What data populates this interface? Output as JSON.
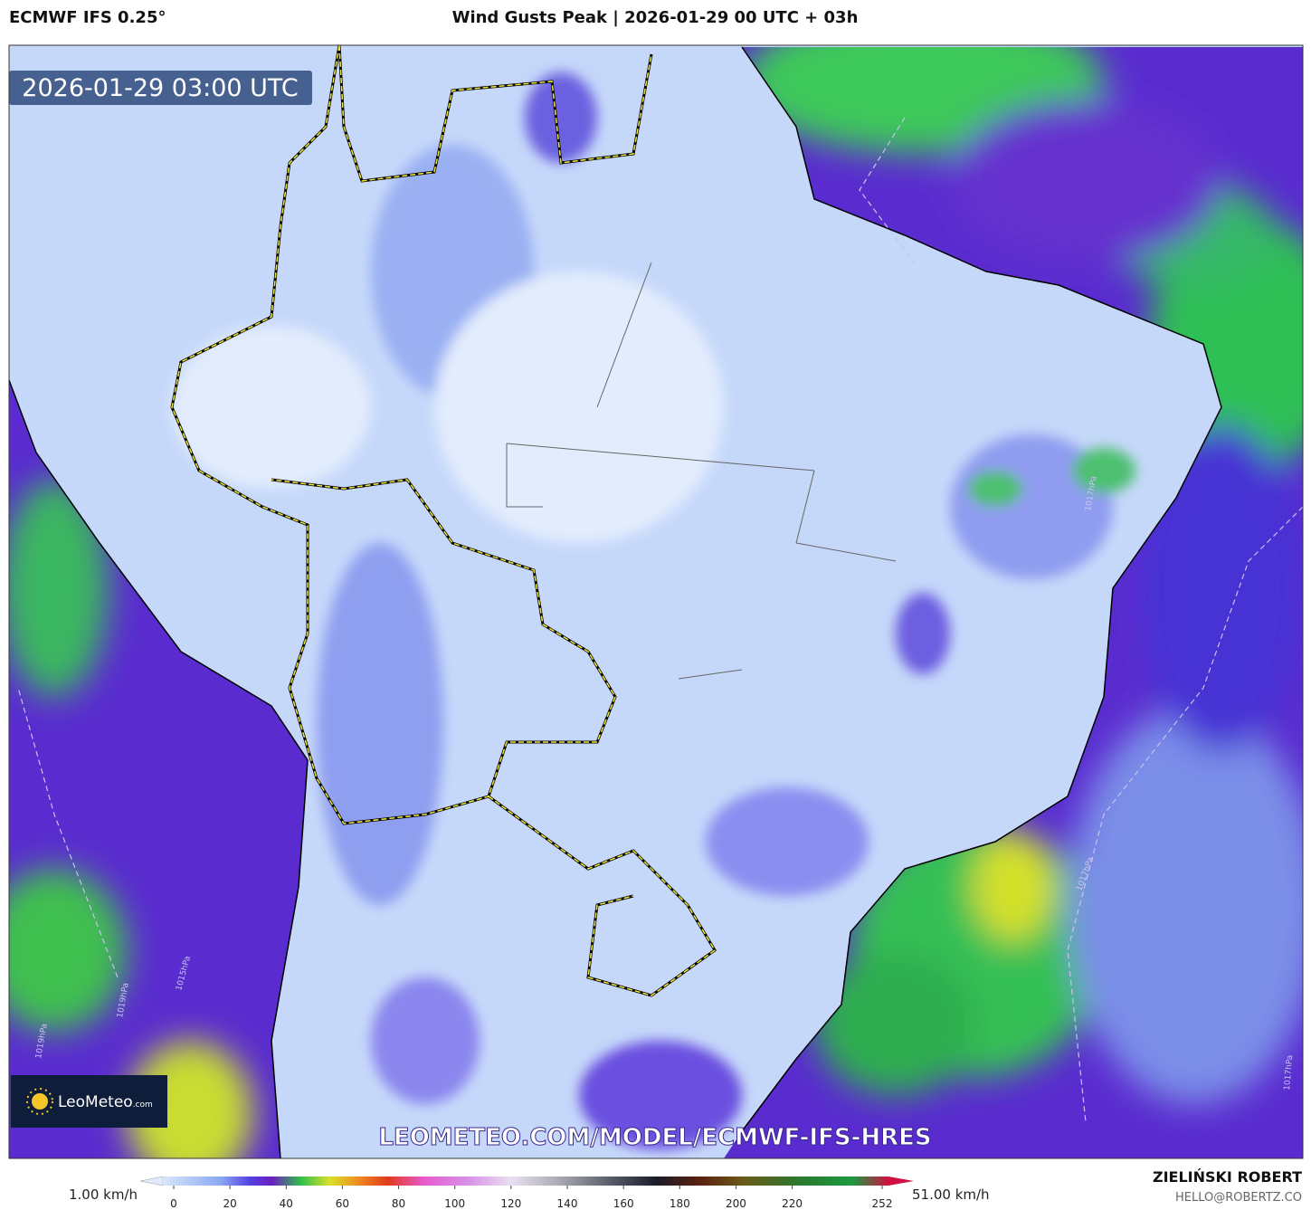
{
  "header": {
    "model": "ECMWF IFS 0.25°",
    "title": "Wind Gusts Peak | 2026-01-29 00 UTC + 03h"
  },
  "map": {
    "valid_time": "2026-01-29 03:00 UTC",
    "logo": {
      "name": "LeoMeteo",
      "suffix": ".com"
    },
    "watermark": "LEOMETEO.COM/MODEL/ECMWF-IFS-HRES",
    "isobar_labels": [
      "1017hPa",
      "1019hPa",
      "1015hPa",
      "1019hPa",
      "1017hPa",
      "1017hPa"
    ]
  },
  "colorbar": {
    "min_label": "1.00 km/h",
    "max_label": "51.00 km/h",
    "ticks": [
      0,
      20,
      40,
      60,
      80,
      100,
      120,
      140,
      160,
      180,
      200,
      220,
      252
    ]
  },
  "footer": {
    "author": "ZIELIŃSKI ROBERT",
    "contact": "HELLO@ROBERTZ.CO"
  }
}
